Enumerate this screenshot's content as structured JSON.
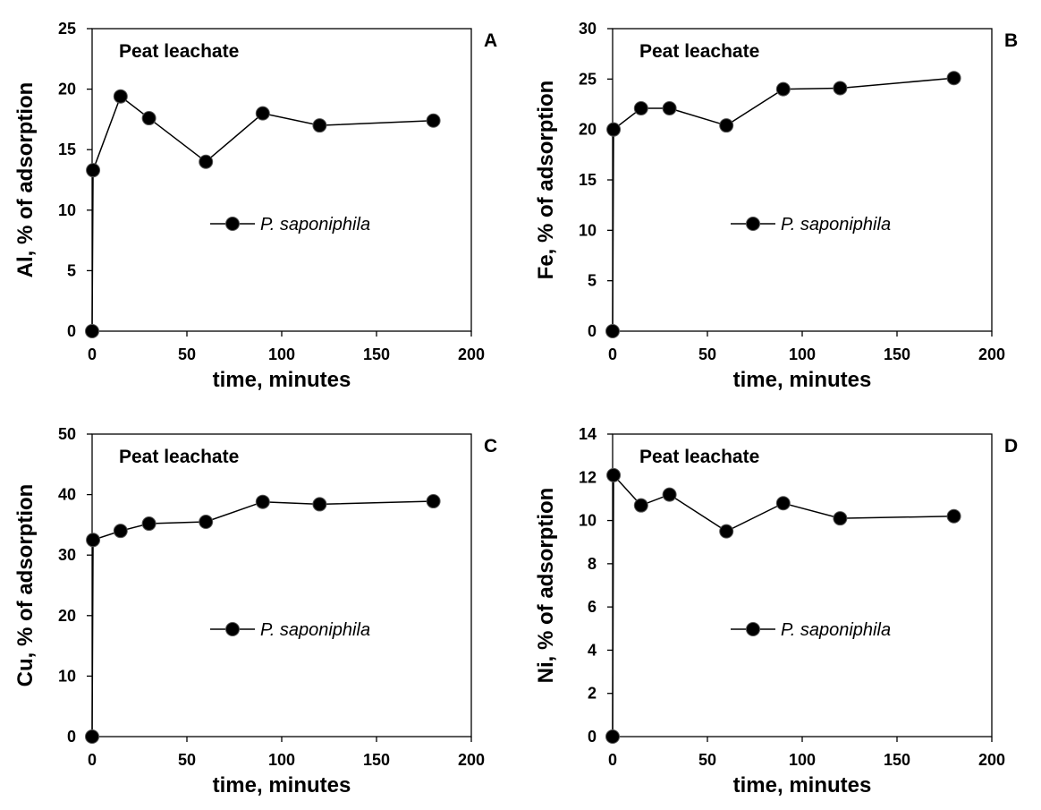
{
  "chart_data": [
    {
      "type": "line",
      "panel_letter": "A",
      "title": "Peat leachate",
      "xlabel": "time, minutes",
      "ylabel": "Al, % of adsorption",
      "xlim": [
        0,
        200
      ],
      "ylim": [
        0,
        25
      ],
      "xticks": [
        0,
        50,
        100,
        150,
        200
      ],
      "yticks": [
        0,
        5,
        10,
        15,
        20,
        25
      ],
      "grid": false,
      "legend_position": "center-right",
      "series": [
        {
          "name": "P. saponiphila",
          "x": [
            0,
            0.5,
            15,
            30,
            60,
            90,
            120,
            180
          ],
          "y": [
            0,
            13.3,
            19.4,
            17.6,
            14.0,
            18.0,
            17.0,
            17.4
          ]
        }
      ]
    },
    {
      "type": "line",
      "panel_letter": "B",
      "title": "Peat leachate",
      "xlabel": "time, minutes",
      "ylabel": "Fe, % of adsorption",
      "xlim": [
        0,
        200
      ],
      "ylim": [
        0,
        30
      ],
      "xticks": [
        0,
        50,
        100,
        150,
        200
      ],
      "yticks": [
        0,
        5,
        10,
        15,
        20,
        25,
        30
      ],
      "grid": false,
      "legend_position": "center-right",
      "series": [
        {
          "name": "P. saponiphila",
          "x": [
            0,
            0.5,
            15,
            30,
            60,
            90,
            120,
            180
          ],
          "y": [
            0,
            20.0,
            22.1,
            22.1,
            20.4,
            24.0,
            24.1,
            25.1
          ]
        }
      ]
    },
    {
      "type": "line",
      "panel_letter": "C",
      "title": "Peat leachate",
      "xlabel": "time, minutes",
      "ylabel": "Cu, % of adsorption",
      "xlim": [
        0,
        200
      ],
      "ylim": [
        0,
        50
      ],
      "xticks": [
        0,
        50,
        100,
        150,
        200
      ],
      "yticks": [
        0,
        10,
        20,
        30,
        40,
        50
      ],
      "grid": false,
      "legend_position": "center-right",
      "series": [
        {
          "name": "P. saponiphila",
          "x": [
            0,
            0.5,
            15,
            30,
            60,
            90,
            120,
            180
          ],
          "y": [
            0,
            32.5,
            34.0,
            35.2,
            35.5,
            38.8,
            38.4,
            38.9
          ]
        }
      ]
    },
    {
      "type": "line",
      "panel_letter": "D",
      "title": "Peat leachate",
      "xlabel": "time, minutes",
      "ylabel": "Ni, % of adsorption",
      "xlim": [
        0,
        200
      ],
      "ylim": [
        0,
        14
      ],
      "xticks": [
        0,
        50,
        100,
        150,
        200
      ],
      "yticks": [
        0,
        2,
        4,
        6,
        8,
        10,
        12,
        14
      ],
      "grid": false,
      "legend_position": "center-right",
      "series": [
        {
          "name": "P. saponiphila",
          "x": [
            0,
            0.5,
            15,
            30,
            60,
            90,
            120,
            180
          ],
          "y": [
            0,
            12.1,
            10.7,
            11.2,
            9.5,
            10.8,
            10.1,
            10.2
          ]
        }
      ]
    }
  ]
}
